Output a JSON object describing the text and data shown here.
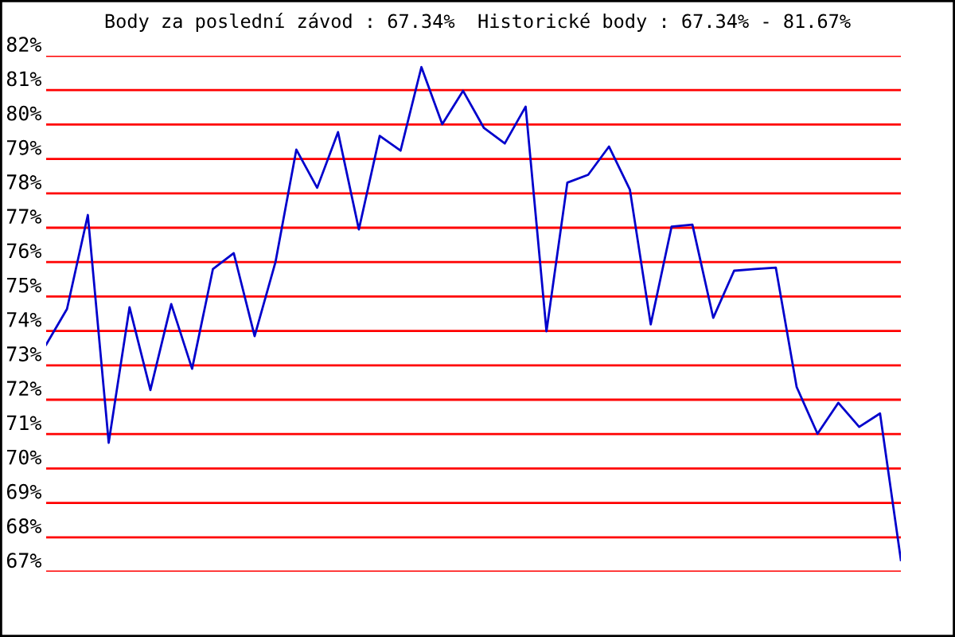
{
  "chart_data": {
    "type": "line",
    "title": "Body za poslední závod : 67.34%  Historické body : 67.34% - 81.67%",
    "categories": [
      null,
      null,
      null,
      null,
      null,
      null,
      null,
      null,
      null,
      null,
      null,
      null,
      null,
      null,
      null,
      null,
      null,
      null,
      null,
      null,
      null,
      null,
      null,
      null,
      null,
      null,
      null,
      null,
      null,
      null,
      null,
      null,
      null,
      null,
      null,
      null,
      null,
      null,
      null,
      null,
      null,
      null
    ],
    "series": [
      {
        "color": "#0000cc",
        "values": [
          73.6,
          74.64,
          77.37,
          70.75,
          74.69,
          72.28,
          74.78,
          72.9,
          75.8,
          76.26,
          73.85,
          76.0,
          79.27,
          78.16,
          79.78,
          76.95,
          79.67,
          79.24,
          81.67,
          80.01,
          80.98,
          79.9,
          79.45,
          80.52,
          73.99,
          78.31,
          78.54,
          79.36,
          78.11,
          74.19,
          77.03,
          77.09,
          74.38,
          75.75,
          75.8,
          75.84,
          72.37,
          71.01,
          71.91,
          71.21,
          71.6,
          67.34
        ]
      }
    ],
    "ylim": [
      67,
      82
    ],
    "yticks": [
      {
        "value": 67,
        "label": "67%"
      },
      {
        "value": 68,
        "label": "68%"
      },
      {
        "value": 69,
        "label": "69%"
      },
      {
        "value": 70,
        "label": "70%"
      },
      {
        "value": 71,
        "label": "71%"
      },
      {
        "value": 72,
        "label": "72%"
      },
      {
        "value": 73,
        "label": "73%"
      },
      {
        "value": 74,
        "label": "74%"
      },
      {
        "value": 75,
        "label": "75%"
      },
      {
        "value": 76,
        "label": "76%"
      },
      {
        "value": 77,
        "label": "77%"
      },
      {
        "value": 78,
        "label": "78%"
      },
      {
        "value": 79,
        "label": "79%"
      },
      {
        "value": 80,
        "label": "80%"
      },
      {
        "value": 81,
        "label": "81%"
      },
      {
        "value": 82,
        "label": "82%"
      }
    ],
    "grid": "y",
    "tick_labels": "y",
    "marker": "none",
    "line_style": "solid"
  }
}
